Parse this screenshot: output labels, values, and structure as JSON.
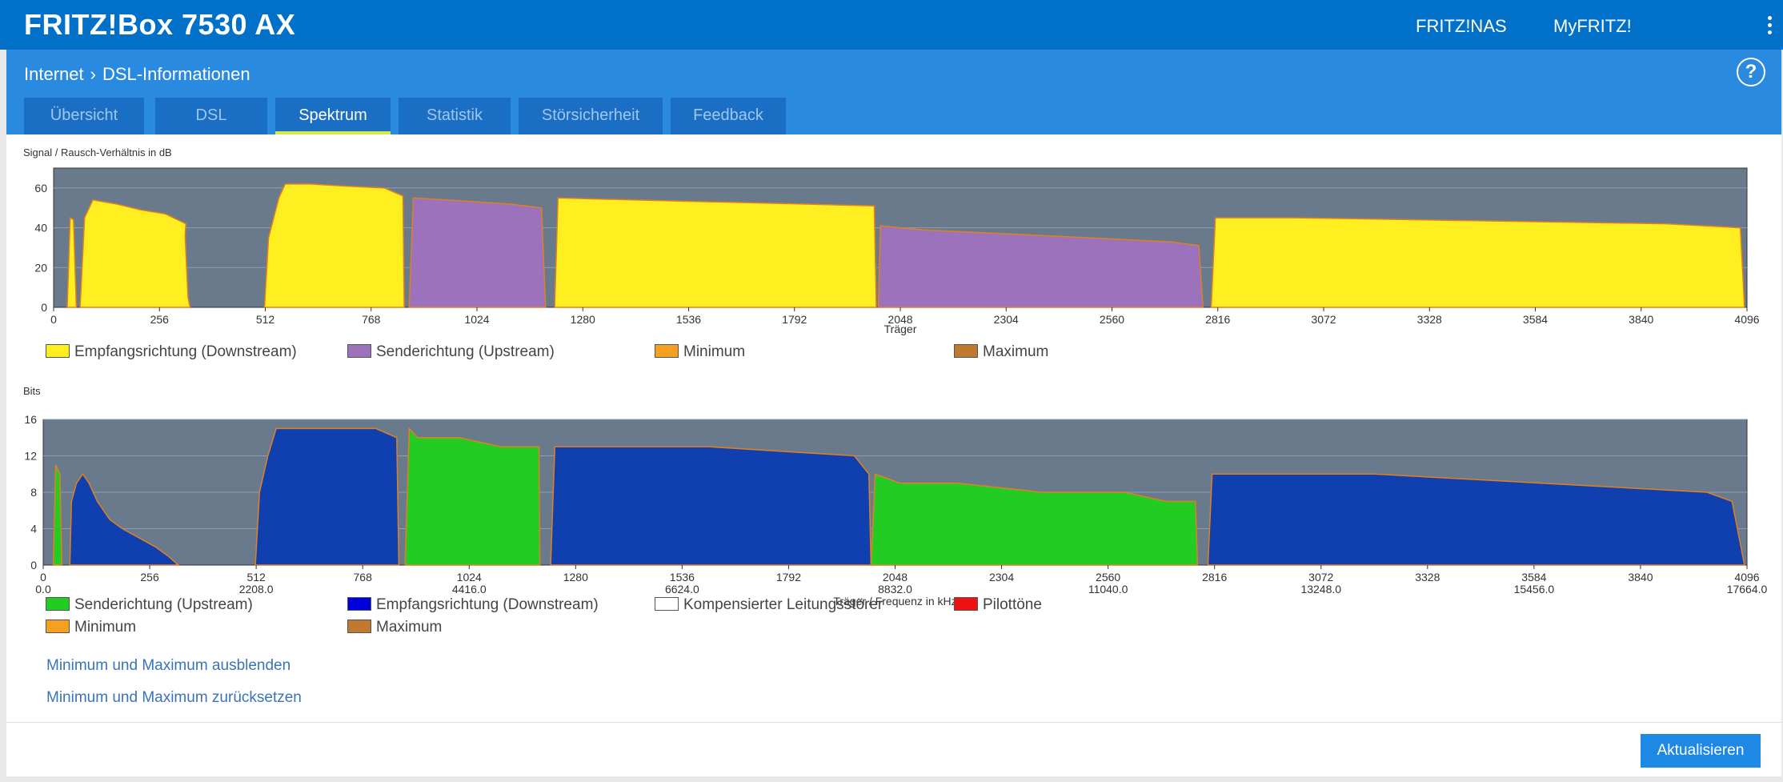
{
  "header": {
    "brand": "FRITZ!Box 7530 AX",
    "links": [
      "FRITZ!NAS",
      "MyFRITZ!"
    ]
  },
  "breadcrumb": {
    "parent": "Internet",
    "current": "DSL-Informationen"
  },
  "help_label": "?",
  "tabs": [
    "Übersicht",
    "DSL",
    "Spektrum",
    "Statistik",
    "Störsicherheit",
    "Feedback"
  ],
  "active_tab": "Spektrum",
  "chart1": {
    "title": "Signal / Rausch-Verhältnis in dB",
    "xlabel": "Träger",
    "yticks": [
      "0",
      "20",
      "40",
      "60"
    ],
    "xticks": [
      "0",
      "256",
      "512",
      "768",
      "1024",
      "1280",
      "1536",
      "1792",
      "2048",
      "2304",
      "2560",
      "2816",
      "3072",
      "3328",
      "3584",
      "3840",
      "4096"
    ]
  },
  "legend1": [
    {
      "label": "Empfangsrichtung (Downstream)",
      "color": "#ffee20"
    },
    {
      "label": "Senderichtung (Upstream)",
      "color": "#9b72bb"
    },
    {
      "label": "Minimum",
      "color": "#f5a020"
    },
    {
      "label": "Maximum",
      "color": "#c07a30"
    }
  ],
  "chart2": {
    "title": "Bits",
    "xlabel": "Träger / Frequenz in kHz",
    "yticks": [
      "0",
      "4",
      "8",
      "12",
      "16"
    ],
    "xticks": [
      "0",
      "256",
      "512",
      "768",
      "1024",
      "1280",
      "1536",
      "1792",
      "2048",
      "2304",
      "2560",
      "2816",
      "3072",
      "3328",
      "3584",
      "3840",
      "4096"
    ],
    "freqs": [
      "0.0",
      "",
      "2208.0",
      "",
      "4416.0",
      "",
      "6624.0",
      "",
      "8832.0",
      "",
      "11040.0",
      "",
      "13248.0",
      "",
      "15456.0",
      "",
      "17664.0"
    ]
  },
  "legend2": [
    {
      "label": "Senderichtung (Upstream)",
      "color": "#22cc22"
    },
    {
      "label": "Empfangsrichtung (Downstream)",
      "color": "#0000dd"
    },
    {
      "label": "Kompensierter Leitungsstörer",
      "color": "#ffffff"
    },
    {
      "label": "Pilottöne",
      "color": "#ee1111"
    },
    {
      "label": "Minimum",
      "color": "#f5a020"
    },
    {
      "label": "Maximum",
      "color": "#c07a30"
    }
  ],
  "links": {
    "hide": "Minimum und Maximum ausblenden",
    "reset": "Minimum und Maximum zurücksetzen"
  },
  "button": "Aktualisieren",
  "colors": {
    "downstream_snr": "#ffee20",
    "upstream_snr": "#9b72bb",
    "upstream_bits": "#22cc22",
    "downstream_bits": "#1040b0",
    "plot_bg": "#687a8c",
    "minmax_line": "#e08020"
  },
  "chart_data": [
    {
      "type": "area",
      "title": "Signal / Rausch-Verhältnis in dB",
      "xlabel": "Träger",
      "ylabel": "",
      "ylim": [
        0,
        70
      ],
      "xlim": [
        0,
        4096
      ],
      "series": [
        {
          "name": "Empfangsrichtung (Downstream)",
          "segments": [
            [
              [
                33,
                0
              ],
              [
                40,
                45
              ],
              [
                48,
                44
              ],
              [
                55,
                0
              ]
            ],
            [
              [
                64,
                0
              ],
              [
                75,
                45
              ],
              [
                95,
                54
              ],
              [
                150,
                52
              ],
              [
                210,
                49
              ],
              [
                270,
                47
              ],
              [
                320,
                42
              ],
              [
                318,
                36
              ],
              [
                325,
                5
              ],
              [
                330,
                0
              ]
            ],
            [
              [
                510,
                0
              ],
              [
                520,
                35
              ],
              [
                545,
                55
              ],
              [
                560,
                62
              ],
              [
                620,
                62
              ],
              [
                700,
                61
              ],
              [
                800,
                60
              ],
              [
                845,
                56
              ],
              [
                848,
                0
              ]
            ],
            [
              [
                1212,
                0
              ],
              [
                1220,
                55
              ],
              [
                1400,
                54
              ],
              [
                1600,
                53
              ],
              [
                1800,
                52
              ],
              [
                1985,
                51
              ],
              [
                1990,
                0
              ]
            ],
            [
              [
                2800,
                0
              ],
              [
                2810,
                45
              ],
              [
                3000,
                45
              ],
              [
                3300,
                44
              ],
              [
                3600,
                43
              ],
              [
                3900,
                42
              ],
              [
                4080,
                40
              ],
              [
                4090,
                0
              ]
            ]
          ]
        },
        {
          "name": "Senderichtung (Upstream)",
          "segments": [
            [
              [
                860,
                0
              ],
              [
                870,
                55
              ],
              [
                950,
                54
              ],
              [
                1100,
                52
              ],
              [
                1180,
                50
              ],
              [
                1190,
                0
              ]
            ],
            [
              [
                1995,
                0
              ],
              [
                2000,
                41
              ],
              [
                2100,
                39
              ],
              [
                2300,
                37
              ],
              [
                2500,
                35
              ],
              [
                2700,
                33
              ],
              [
                2770,
                31
              ],
              [
                2780,
                0
              ]
            ]
          ]
        }
      ]
    },
    {
      "type": "area",
      "title": "Bits",
      "xlabel": "Träger / Frequenz in kHz",
      "ylabel": "",
      "ylim": [
        0,
        16
      ],
      "xlim": [
        0,
        4096
      ],
      "series": [
        {
          "name": "Empfangsrichtung (Downstream)",
          "segments": [
            [
              [
                64,
                0
              ],
              [
                68,
                7
              ],
              [
                80,
                9
              ],
              [
                95,
                10
              ],
              [
                110,
                9
              ],
              [
                130,
                7
              ],
              [
                160,
                5
              ],
              [
                190,
                4
              ],
              [
                230,
                3
              ],
              [
                270,
                2
              ],
              [
                300,
                1
              ],
              [
                325,
                0
              ]
            ],
            [
              [
                510,
                0
              ],
              [
                520,
                8
              ],
              [
                540,
                12
              ],
              [
                560,
                15
              ],
              [
                700,
                15
              ],
              [
                800,
                15
              ],
              [
                850,
                14
              ],
              [
                855,
                0
              ]
            ],
            [
              [
                1220,
                0
              ],
              [
                1230,
                13
              ],
              [
                1600,
                13
              ],
              [
                1950,
                12
              ],
              [
                1985,
                10
              ],
              [
                1990,
                0
              ]
            ],
            [
              [
                2800,
                0
              ],
              [
                2810,
                10
              ],
              [
                3200,
                10
              ],
              [
                3600,
                9
              ],
              [
                4000,
                8
              ],
              [
                4060,
                7
              ],
              [
                4090,
                0
              ]
            ]
          ]
        },
        {
          "name": "Senderichtung (Upstream)",
          "segments": [
            [
              [
                24,
                0
              ],
              [
                30,
                11
              ],
              [
                40,
                10
              ],
              [
                45,
                0
              ]
            ],
            [
              [
                870,
                0
              ],
              [
                880,
                15
              ],
              [
                900,
                14
              ],
              [
                1000,
                14
              ],
              [
                1100,
                13
              ],
              [
                1192,
                13
              ],
              [
                1194,
                0
              ]
            ],
            [
              [
                1990,
                0
              ],
              [
                2000,
                10
              ],
              [
                2060,
                9
              ],
              [
                2200,
                9
              ],
              [
                2400,
                8
              ],
              [
                2600,
                8
              ],
              [
                2700,
                7
              ],
              [
                2770,
                7
              ],
              [
                2775,
                0
              ]
            ]
          ]
        }
      ]
    }
  ]
}
